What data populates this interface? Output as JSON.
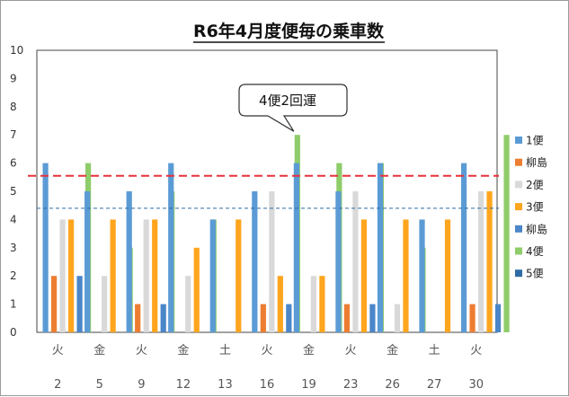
{
  "chart_data": {
    "type": "bar",
    "title": "R6年4月度便毎の乗車数",
    "categories": [
      {
        "weekday": "火",
        "day": "2"
      },
      {
        "weekday": "金",
        "day": "5"
      },
      {
        "weekday": "火",
        "day": "9"
      },
      {
        "weekday": "金",
        "day": "12"
      },
      {
        "weekday": "土",
        "day": "13"
      },
      {
        "weekday": "火",
        "day": "16"
      },
      {
        "weekday": "金",
        "day": "19"
      },
      {
        "weekday": "火",
        "day": "23"
      },
      {
        "weekday": "金",
        "day": "26"
      },
      {
        "weekday": "土",
        "day": "27"
      },
      {
        "weekday": "火",
        "day": "30"
      }
    ],
    "series": [
      {
        "name": "1便",
        "color": "#5b9bd5",
        "values": [
          6,
          5,
          5,
          6,
          4,
          5,
          6,
          5,
          6,
          4,
          6
        ]
      },
      {
        "name": "柳島",
        "color": "#ed7d31",
        "values": [
          2,
          0,
          1,
          0,
          0,
          1,
          0,
          1,
          0,
          0,
          1
        ]
      },
      {
        "name": "2便",
        "color": "#d9d9d9",
        "values": [
          4,
          2,
          4,
          2,
          0,
          5,
          2,
          5,
          1,
          0,
          5
        ]
      },
      {
        "name": "3便",
        "color": "#ffa51e",
        "values": [
          4,
          4,
          4,
          3,
          4,
          2,
          2,
          4,
          4,
          4,
          5
        ]
      },
      {
        "name": "柳島",
        "color": "#4a86c8",
        "values": [
          2,
          0,
          1,
          0,
          0,
          1,
          0,
          1,
          0,
          0,
          1
        ]
      },
      {
        "name": "4便",
        "color": "#8fcc6a",
        "values": [
          6,
          3,
          5,
          4,
          0,
          7,
          6,
          6,
          3,
          0,
          7
        ]
      },
      {
        "name": "5便",
        "color": "#2e6ca5",
        "values": [
          0,
          0,
          0,
          0,
          0,
          0,
          0,
          0,
          0,
          0,
          0
        ]
      }
    ],
    "ylim": [
      0,
      10
    ],
    "yticks": [
      0,
      1,
      2,
      3,
      4,
      5,
      6,
      7,
      8,
      9,
      10
    ],
    "reference_lines": [
      {
        "value": 5.55,
        "color": "#e8313a",
        "style": "dashed"
      },
      {
        "value": 4.4,
        "color": "#2e6ca5",
        "style": "dashed"
      }
    ],
    "annotation": {
      "text": "4便2回運",
      "points_to_category": 5
    },
    "legend_position": "right",
    "grid": false
  }
}
